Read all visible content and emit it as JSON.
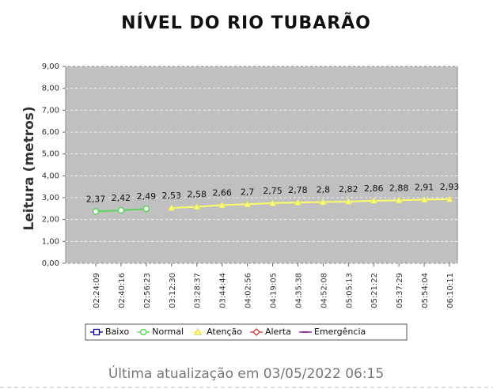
{
  "chart_data": {
    "type": "line",
    "title": "NÍVEL DO RIO TUBARÃO",
    "y_label": "Leitura (metros)",
    "footer": "Última atualização em 03/05/2022 06:15",
    "categories": [
      "02:24:09",
      "02:40:16",
      "02:56:23",
      "03:12:30",
      "03:28:37",
      "03:44:44",
      "04:02:56",
      "04:19:05",
      "04:35:38",
      "04:52:08",
      "05:05:13",
      "05:21:22",
      "05:37:29",
      "05:54:04",
      "06:10:11"
    ],
    "series": [
      {
        "name": "Baixo",
        "color": "#000080",
        "marker": "square",
        "values": [
          null,
          null,
          null,
          null,
          null,
          null,
          null,
          null,
          null,
          null,
          null,
          null,
          null,
          null,
          null
        ]
      },
      {
        "name": "Normal",
        "color": "#5fd35f",
        "marker": "circle",
        "values": [
          2.37,
          2.42,
          2.49,
          null,
          null,
          null,
          null,
          null,
          null,
          null,
          null,
          null,
          null,
          null,
          null
        ],
        "value_labels": [
          "2,37",
          "2,42",
          "2,49",
          null,
          null,
          null,
          null,
          null,
          null,
          null,
          null,
          null,
          null,
          null,
          null
        ]
      },
      {
        "name": "Atenção",
        "color": "#ffff66",
        "marker": "triangle",
        "values": [
          null,
          null,
          null,
          2.53,
          2.58,
          2.66,
          2.7,
          2.75,
          2.78,
          2.8,
          2.82,
          2.86,
          2.88,
          2.91,
          2.93
        ],
        "value_labels": [
          null,
          null,
          null,
          "2,53",
          "2,58",
          "2,66",
          "2,7",
          "2,75",
          "2,78",
          "2,8",
          "2,82",
          "2,86",
          "2,88",
          "2,91",
          "2,93"
        ]
      },
      {
        "name": "Alerta",
        "color": "#cc3333",
        "marker": "diamond",
        "values": [
          null,
          null,
          null,
          null,
          null,
          null,
          null,
          null,
          null,
          null,
          null,
          null,
          null,
          null,
          null
        ]
      },
      {
        "name": "Emergência",
        "color": "#800080",
        "marker": "line",
        "values": [
          null,
          null,
          null,
          null,
          null,
          null,
          null,
          null,
          null,
          null,
          null,
          null,
          null,
          null,
          null
        ]
      }
    ],
    "ylim": [
      0,
      9
    ],
    "yticks": [
      {
        "value": 0,
        "label": "0,00"
      },
      {
        "value": 1,
        "label": "1,00"
      },
      {
        "value": 2,
        "label": "2,00"
      },
      {
        "value": 3,
        "label": "3,00"
      },
      {
        "value": 4,
        "label": "4,00"
      },
      {
        "value": 5,
        "label": "5,00"
      },
      {
        "value": 6,
        "label": "6,00"
      },
      {
        "value": 7,
        "label": "7,00"
      },
      {
        "value": 8,
        "label": "8,00"
      },
      {
        "value": 9,
        "label": "9,00"
      }
    ],
    "grid": true,
    "plot_color": "#c0c0c0"
  }
}
